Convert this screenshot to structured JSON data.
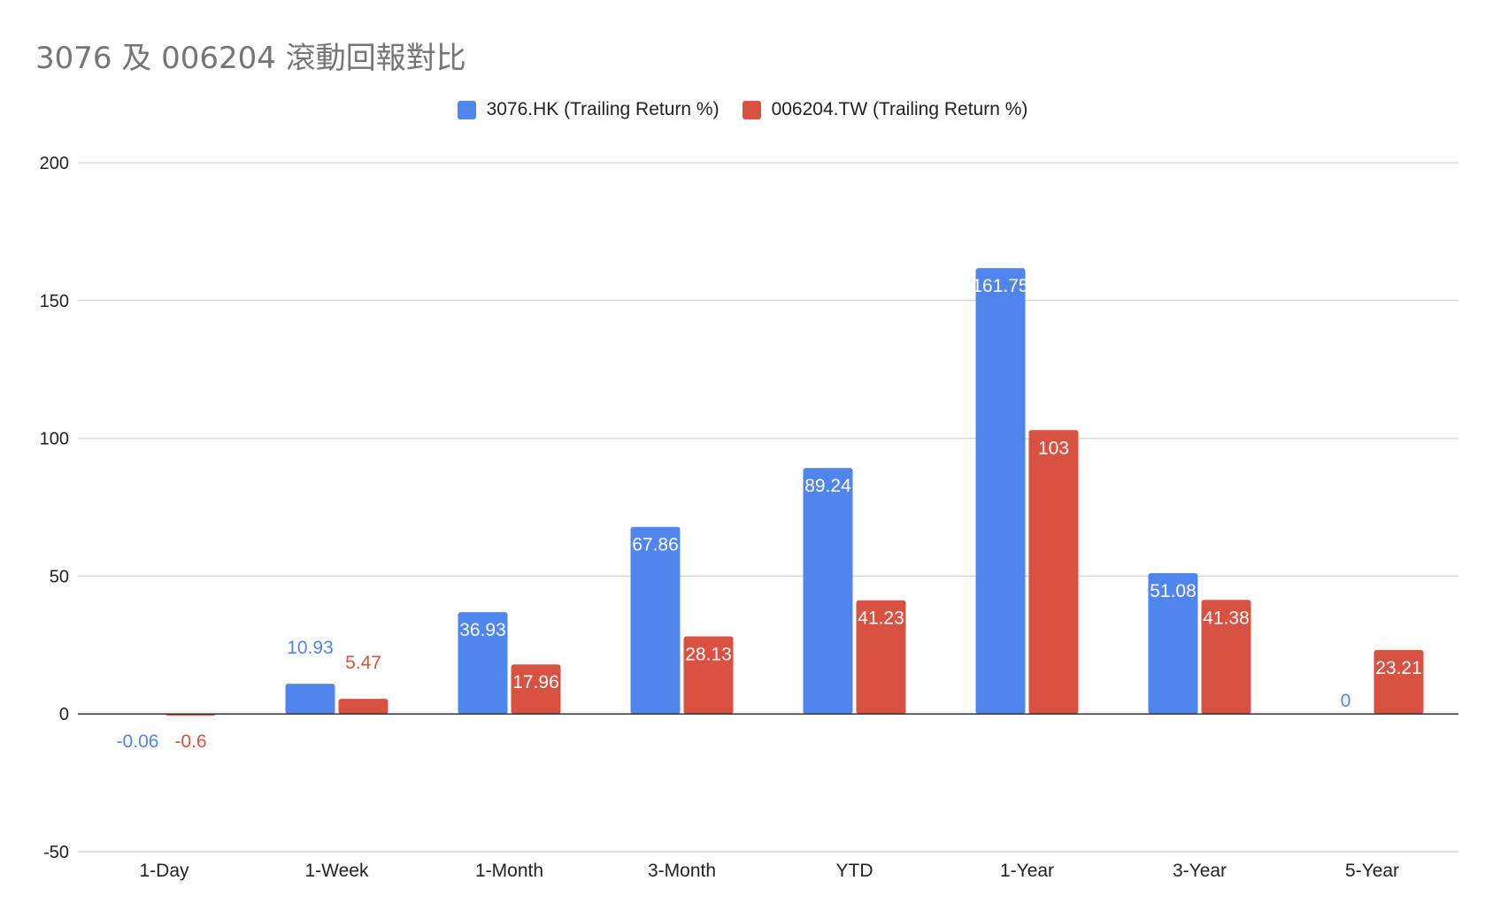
{
  "chart_data": {
    "type": "bar",
    "title": "3076 及 006204 滾動回報對比",
    "categories": [
      "1-Day",
      "1-Week",
      "1-Month",
      "3-Month",
      "YTD",
      "1-Year",
      "3-Year",
      "5-Year"
    ],
    "series": [
      {
        "name": "3076.HK (Trailing Return %)",
        "color": "#5085ee",
        "values": [
          -0.06,
          10.93,
          36.93,
          67.86,
          89.24,
          161.75,
          51.08,
          0
        ],
        "labels": [
          "-0.06",
          "10.93",
          "36.93",
          "67.86",
          "89.24",
          "161.75",
          "51.08",
          "0"
        ]
      },
      {
        "name": "006204.TW (Trailing Return %)",
        "color": "#d95140",
        "values": [
          -0.6,
          5.47,
          17.96,
          28.13,
          41.23,
          103,
          41.38,
          23.21
        ],
        "labels": [
          "-0.6",
          "5.47",
          "17.96",
          "28.13",
          "41.23",
          "103",
          "41.38",
          "23.21"
        ]
      }
    ],
    "ylim": [
      -50,
      200
    ],
    "yticks": [
      -50,
      0,
      50,
      100,
      150,
      200
    ],
    "ytick_labels": [
      "-50",
      "0",
      "50",
      "100",
      "150",
      "200"
    ],
    "xlabel": "",
    "ylabel": "",
    "grid": true,
    "legend_position": "top"
  }
}
